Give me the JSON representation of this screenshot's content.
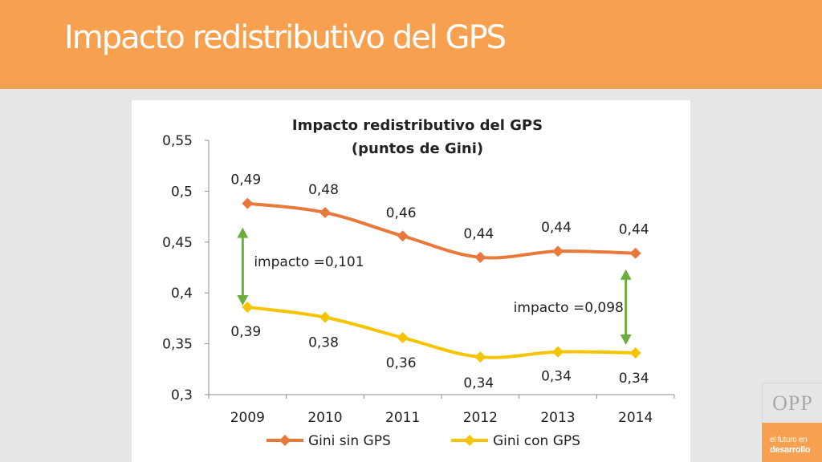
{
  "slide": {
    "title": "Impacto redistributivo del GPS"
  },
  "branding": {
    "logo_text": "OPP",
    "tagline_line1": "el futuro en",
    "tagline_line2": "desarrollo"
  },
  "colors": {
    "header": "#f7a04f",
    "series_sin": "#e8793a",
    "series_con": "#f5c400",
    "arrow": "#6cae3e"
  },
  "chart_data": {
    "type": "line",
    "title": "Impacto redistributivo del GPS",
    "subtitle": "(puntos de Gini)",
    "categories": [
      "2009",
      "2010",
      "2011",
      "2012",
      "2013",
      "2014"
    ],
    "series": [
      {
        "name": "Gini sin GPS",
        "values": [
          0.488,
          0.479,
          0.456,
          0.435,
          0.441,
          0.439
        ],
        "labels": [
          "0,49",
          "0,48",
          "0,46",
          "0,44",
          "0,44",
          "0,44"
        ],
        "color": "#e8793a"
      },
      {
        "name": "Gini con GPS",
        "values": [
          0.386,
          0.376,
          0.356,
          0.337,
          0.342,
          0.341
        ],
        "labels": [
          "0,39",
          "0,38",
          "0,36",
          "0,34",
          "0,34",
          "0,34"
        ],
        "color": "#f5c400"
      }
    ],
    "ylim": [
      0.3,
      0.55
    ],
    "yticks": [
      "0,3",
      "0,35",
      "0,4",
      "0,45",
      "0,5",
      "0,55"
    ],
    "xlabel": "",
    "ylabel": "",
    "grid": false,
    "legend": "bottom",
    "annotations": [
      {
        "text": "impacto =0,101",
        "category": "2009"
      },
      {
        "text": "impacto =0,098",
        "category": "2014"
      }
    ]
  }
}
